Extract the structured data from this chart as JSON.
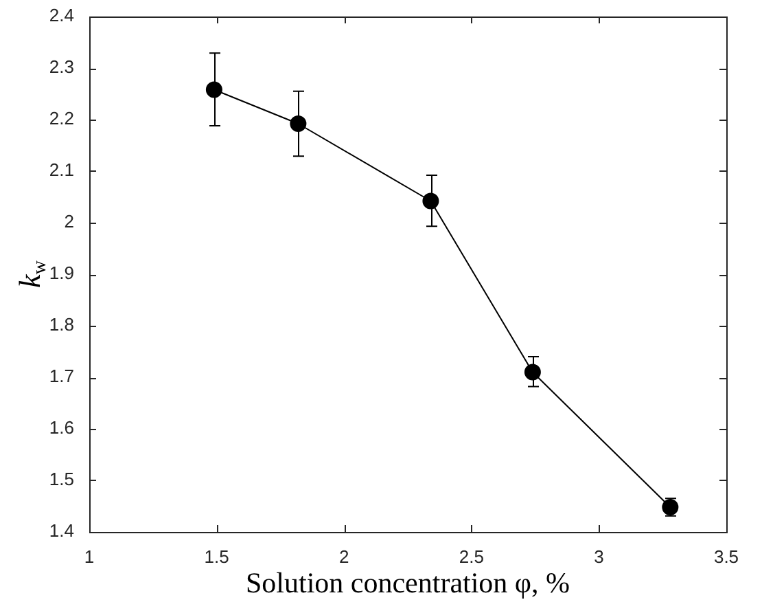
{
  "chart_data": {
    "type": "line",
    "xlabel": "Solution concentration φ, %",
    "ylabel": "k$_{w}$",
    "x": [
      1.49,
      1.82,
      2.34,
      2.74,
      3.28
    ],
    "series": [
      {
        "color": "#000000",
        "values": [
          2.258,
          2.192,
          2.042,
          1.71,
          1.448
        ],
        "errors": [
          [
            2.188,
            2.329
          ],
          [
            2.129,
            2.255
          ],
          [
            1.993,
            2.092
          ],
          [
            1.682,
            1.74
          ],
          [
            1.431,
            1.465
          ]
        ]
      }
    ],
    "xlim": [
      1,
      3.5
    ],
    "xticks": [
      1,
      1.5,
      2,
      2.5,
      3,
      3.5
    ],
    "ylim": [
      1.4,
      2.4
    ],
    "yticks": [
      1.4,
      1.5,
      1.6,
      1.7,
      1.8,
      1.9,
      2,
      2.1,
      2.2,
      2.3,
      2.4
    ],
    "marker": "circle",
    "line_style": "solid",
    "legend": false
  }
}
